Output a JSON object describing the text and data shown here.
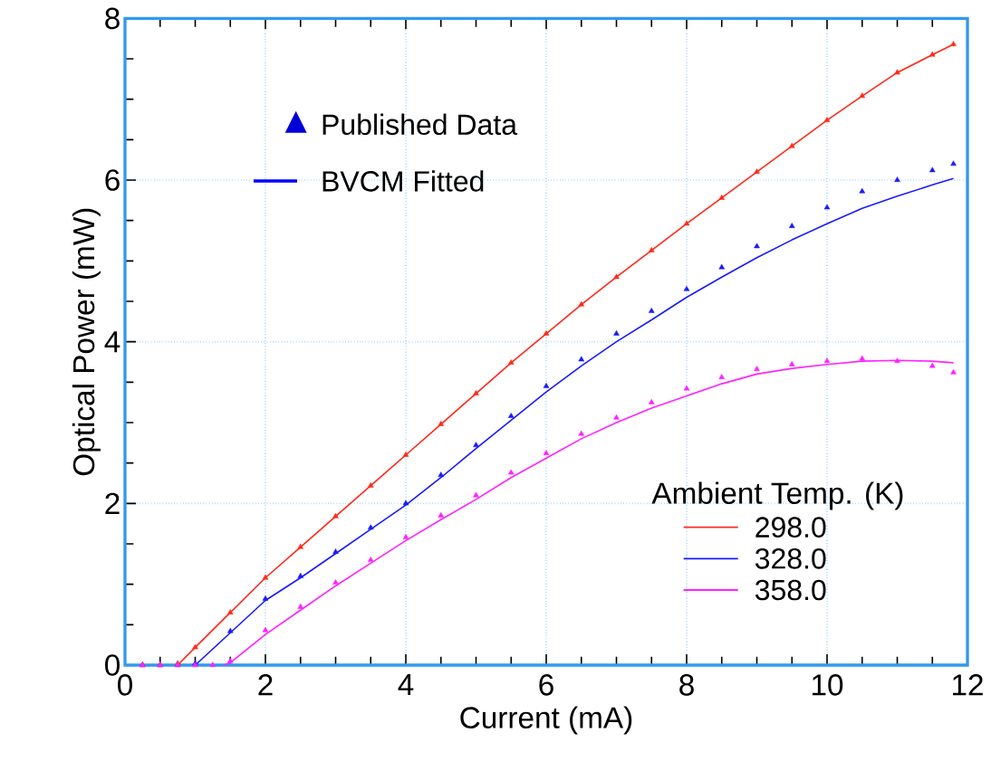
{
  "chart_data": {
    "type": "line",
    "xlabel": "Current (mA)",
    "ylabel": "Optical Power (mW)",
    "xlim": [
      0,
      12
    ],
    "ylim": [
      0,
      8
    ],
    "xticks": [
      0,
      2,
      4,
      6,
      8,
      10,
      12
    ],
    "yticks": [
      0,
      2,
      4,
      6,
      8
    ],
    "grid": true,
    "legend": "bottom right",
    "legend_title": "Ambient Temp. (K)",
    "annotations": [
      "Published Data",
      "BVCM Fitted"
    ],
    "series": [
      {
        "type": "scatter",
        "marker": "triangle",
        "color": "#1a1aff",
        "x": [
          0.25,
          0.5,
          0.75,
          1,
          1.5,
          2,
          2.5,
          3,
          3.5,
          4,
          4.5,
          5,
          5.5,
          6,
          6.5,
          7,
          7.5,
          8,
          8.5,
          9,
          9.5,
          10,
          10.5,
          11,
          11.5,
          11.8
        ],
        "values": [
          0,
          0,
          0,
          0.02,
          0.42,
          0.82,
          1.1,
          1.4,
          1.7,
          2.0,
          2.35,
          2.72,
          3.08,
          3.45,
          3.78,
          4.1,
          4.38,
          4.65,
          4.92,
          5.18,
          5.43,
          5.66,
          5.86,
          6.0,
          6.12,
          6.2
        ]
      },
      {
        "type": "scatter",
        "marker": "triangle",
        "color": "#ff2a1a",
        "x": [
          0.25,
          0.5,
          0.75,
          1,
          1.5,
          2,
          2.5,
          3,
          3.5,
          4,
          4.5,
          5,
          5.5,
          6,
          6.5,
          7,
          7.5,
          8,
          8.5,
          9,
          9.5,
          10,
          10.5,
          11,
          11.5,
          11.8
        ],
        "values": [
          0,
          0,
          0.02,
          0.22,
          0.65,
          1.08,
          1.46,
          1.84,
          2.22,
          2.6,
          2.98,
          3.36,
          3.74,
          4.1,
          4.46,
          4.8,
          5.13,
          5.46,
          5.78,
          6.1,
          6.42,
          6.74,
          7.04,
          7.33,
          7.55,
          7.68
        ]
      },
      {
        "type": "scatter",
        "marker": "triangle",
        "color": "#ff22ff",
        "x": [
          0.25,
          0.5,
          0.75,
          1,
          1.25,
          1.5,
          2,
          2.5,
          3,
          3.5,
          4,
          4.5,
          5,
          5.5,
          6,
          6.5,
          7,
          7.5,
          8,
          8.5,
          9,
          9.5,
          10,
          10.5,
          11,
          11.5,
          11.8
        ],
        "values": [
          0,
          0,
          0,
          0,
          0,
          0.05,
          0.43,
          0.72,
          1.02,
          1.3,
          1.58,
          1.85,
          2.1,
          2.38,
          2.62,
          2.86,
          3.06,
          3.25,
          3.42,
          3.56,
          3.66,
          3.72,
          3.76,
          3.79,
          3.76,
          3.7,
          3.62
        ]
      },
      {
        "type": "line",
        "name": "298.0",
        "color": "#ff2a1a",
        "x": [
          0.75,
          1,
          1.5,
          2,
          2.5,
          3,
          3.5,
          4,
          4.5,
          5,
          5.5,
          6,
          6.5,
          7,
          7.5,
          8,
          8.5,
          9,
          9.5,
          10,
          10.5,
          11,
          11.5,
          11.8
        ],
        "values": [
          0,
          0.22,
          0.65,
          1.08,
          1.46,
          1.84,
          2.22,
          2.6,
          2.98,
          3.36,
          3.74,
          4.1,
          4.46,
          4.8,
          5.13,
          5.46,
          5.78,
          6.1,
          6.42,
          6.74,
          7.04,
          7.33,
          7.55,
          7.68
        ]
      },
      {
        "type": "line",
        "name": "328.0",
        "color": "#1a1aff",
        "x": [
          1,
          1.5,
          2,
          2.5,
          3,
          3.5,
          4,
          4.5,
          5,
          5.5,
          6,
          6.5,
          7,
          7.5,
          8,
          8.5,
          9,
          9.5,
          10,
          10.5,
          11,
          11.5,
          11.8
        ],
        "values": [
          0,
          0.4,
          0.8,
          1.08,
          1.38,
          1.68,
          1.98,
          2.32,
          2.68,
          3.03,
          3.38,
          3.7,
          4.0,
          4.27,
          4.55,
          4.8,
          5.04,
          5.26,
          5.46,
          5.65,
          5.8,
          5.94,
          6.02
        ]
      },
      {
        "type": "line",
        "name": "358.0",
        "color": "#ff22ff",
        "x": [
          1.4,
          1.5,
          2,
          2.5,
          3,
          3.5,
          4,
          4.5,
          5,
          5.5,
          6,
          6.5,
          7,
          7.5,
          8,
          8.5,
          9,
          9.5,
          10,
          10.5,
          11,
          11.5,
          11.8
        ],
        "values": [
          0,
          0.03,
          0.38,
          0.68,
          0.98,
          1.26,
          1.54,
          1.8,
          2.05,
          2.32,
          2.56,
          2.8,
          3.0,
          3.18,
          3.33,
          3.48,
          3.6,
          3.67,
          3.72,
          3.76,
          3.77,
          3.76,
          3.74
        ]
      }
    ]
  }
}
